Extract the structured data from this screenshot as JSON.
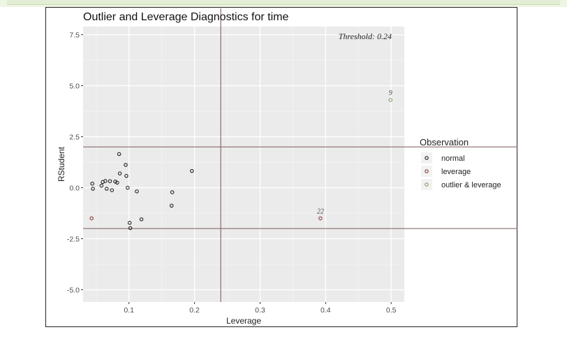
{
  "chart_data": {
    "type": "scatter",
    "title": "Outlier and Leverage Diagnostics for time",
    "xlabel": "Leverage",
    "ylabel": "RStudent",
    "xlim": [
      0.03,
      0.52
    ],
    "ylim": [
      -5.6,
      7.9
    ],
    "xticks": [
      0.1,
      0.2,
      0.3,
      0.4,
      0.5
    ],
    "xtick_labels": [
      "0.1",
      "0.2",
      "0.3",
      "0.4",
      "0.5"
    ],
    "yticks": [
      -5.0,
      -2.5,
      0.0,
      2.5,
      5.0,
      7.5
    ],
    "ytick_labels": [
      "-5.0",
      "-2.5",
      "0.0",
      "2.5",
      "5.0",
      "7.5"
    ],
    "grid": true,
    "threshold_annotation": "Threshold: 0.24",
    "reference_lines": {
      "vertical_x": 0.24,
      "horizontal_y": [
        2,
        -2
      ]
    },
    "legend": {
      "title": "Observation",
      "position": "right",
      "entries": [
        {
          "label": "normal",
          "color": "#222222"
        },
        {
          "label": "leverage",
          "color": "#8b3a3a"
        },
        {
          "label": "outlier & leverage",
          "color": "#7fa063"
        }
      ]
    },
    "series": [
      {
        "name": "normal",
        "color": "#222222",
        "points": [
          {
            "x": 0.044,
            "y": 0.2
          },
          {
            "x": 0.045,
            "y": -0.05
          },
          {
            "x": 0.058,
            "y": 0.1
          },
          {
            "x": 0.06,
            "y": 0.28
          },
          {
            "x": 0.064,
            "y": 0.33
          },
          {
            "x": 0.066,
            "y": -0.05
          },
          {
            "x": 0.071,
            "y": 0.32
          },
          {
            "x": 0.074,
            "y": -0.12
          },
          {
            "x": 0.079,
            "y": 0.3
          },
          {
            "x": 0.082,
            "y": 0.25
          },
          {
            "x": 0.085,
            "y": 1.65
          },
          {
            "x": 0.086,
            "y": 0.7
          },
          {
            "x": 0.095,
            "y": 1.12
          },
          {
            "x": 0.096,
            "y": 0.58
          },
          {
            "x": 0.098,
            "y": 0.0
          },
          {
            "x": 0.101,
            "y": -1.72
          },
          {
            "x": 0.102,
            "y": -1.98
          },
          {
            "x": 0.112,
            "y": -0.18
          },
          {
            "x": 0.119,
            "y": -1.55
          },
          {
            "x": 0.166,
            "y": -0.22
          },
          {
            "x": 0.165,
            "y": -0.88
          },
          {
            "x": 0.196,
            "y": 0.82
          }
        ]
      },
      {
        "name": "leverage",
        "color": "#8b3a3a",
        "points": [
          {
            "x": 0.043,
            "y": -1.5
          },
          {
            "x": 0.392,
            "y": -1.5,
            "label": "22"
          }
        ]
      },
      {
        "name": "outlier & leverage",
        "color": "#7fa063",
        "points": [
          {
            "x": 0.499,
            "y": 4.3,
            "label": "9"
          }
        ]
      }
    ]
  }
}
